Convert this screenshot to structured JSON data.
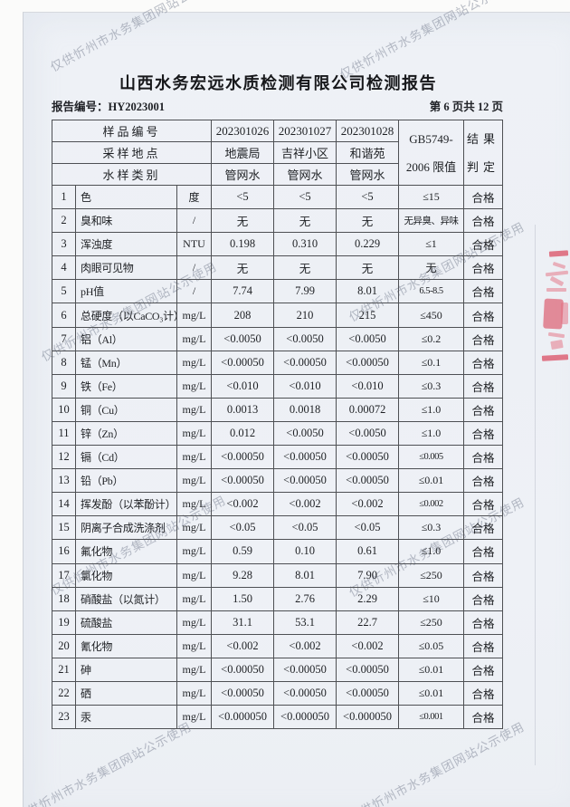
{
  "title": "山西水务宏远水质检测有限公司检测报告",
  "meta": {
    "report_no": "报告编号：HY2023001",
    "page_info": "第 6 页共 12 页"
  },
  "watermark_text": "仅供忻州市水务集团网站公示使用",
  "table": {
    "header": {
      "sample_no_label": "样品编号",
      "location_label": "采样地点",
      "type_label": "水样类别",
      "sample_nos": [
        "202301026",
        "202301027",
        "202301028"
      ],
      "locations": [
        "地震局",
        "吉祥小区",
        "和谐苑"
      ],
      "types": [
        "管网水",
        "管网水",
        "管网水"
      ],
      "limit_col_line1": "GB5749-",
      "limit_col_line2": "2006 限值",
      "result_col_line1": "结果",
      "result_col_line2": "判定"
    },
    "rows": [
      {
        "no": "1",
        "name": "色",
        "unit": "度",
        "v1": "<5",
        "v2": "<5",
        "v3": "<5",
        "limit": "≤15",
        "result": "合格"
      },
      {
        "no": "2",
        "name": "臭和味",
        "unit": "/",
        "v1": "无",
        "v2": "无",
        "v3": "无",
        "limit": "无异臭、异味",
        "result": "合格"
      },
      {
        "no": "3",
        "name": "浑浊度",
        "unit": "NTU",
        "v1": "0.198",
        "v2": "0.310",
        "v3": "0.229",
        "limit": "≤1",
        "result": "合格"
      },
      {
        "no": "4",
        "name": "肉眼可见物",
        "unit": "/",
        "v1": "无",
        "v2": "无",
        "v3": "无",
        "limit": "无",
        "result": "合格"
      },
      {
        "no": "5",
        "name": "pH值",
        "unit": "/",
        "v1": "7.74",
        "v2": "7.99",
        "v3": "8.01",
        "limit": "6.5-8.5",
        "result": "合格"
      },
      {
        "no": "6",
        "name": "总硬度（以CaCO₃计）",
        "unit": "mg/L",
        "v1": "208",
        "v2": "210",
        "v3": "215",
        "limit": "≤450",
        "result": "合格"
      },
      {
        "no": "7",
        "name": "铝（Al）",
        "unit": "mg/L",
        "v1": "<0.0050",
        "v2": "<0.0050",
        "v3": "<0.0050",
        "limit": "≤0.2",
        "result": "合格"
      },
      {
        "no": "8",
        "name": "锰（Mn）",
        "unit": "mg/L",
        "v1": "<0.00050",
        "v2": "<0.00050",
        "v3": "<0.00050",
        "limit": "≤0.1",
        "result": "合格"
      },
      {
        "no": "9",
        "name": "铁（Fe）",
        "unit": "mg/L",
        "v1": "<0.010",
        "v2": "<0.010",
        "v3": "<0.010",
        "limit": "≤0.3",
        "result": "合格"
      },
      {
        "no": "10",
        "name": "铜（Cu）",
        "unit": "mg/L",
        "v1": "0.0013",
        "v2": "0.0018",
        "v3": "0.00072",
        "limit": "≤1.0",
        "result": "合格"
      },
      {
        "no": "11",
        "name": "锌（Zn）",
        "unit": "mg/L",
        "v1": "0.012",
        "v2": "<0.0050",
        "v3": "<0.0050",
        "limit": "≤1.0",
        "result": "合格"
      },
      {
        "no": "12",
        "name": "镉（Cd）",
        "unit": "mg/L",
        "v1": "<0.00050",
        "v2": "<0.00050",
        "v3": "<0.00050",
        "limit": "≤0.005",
        "result": "合格"
      },
      {
        "no": "13",
        "name": "铅（Pb）",
        "unit": "mg/L",
        "v1": "<0.00050",
        "v2": "<0.00050",
        "v3": "<0.00050",
        "limit": "≤0.01",
        "result": "合格"
      },
      {
        "no": "14",
        "name": "挥发酚（以苯酚计）",
        "unit": "mg/L",
        "v1": "<0.002",
        "v2": "<0.002",
        "v3": "<0.002",
        "limit": "≤0.002",
        "result": "合格"
      },
      {
        "no": "15",
        "name": "阴离子合成洗涤剂",
        "unit": "mg/L",
        "v1": "<0.05",
        "v2": "<0.05",
        "v3": "<0.05",
        "limit": "≤0.3",
        "result": "合格"
      },
      {
        "no": "16",
        "name": "氟化物",
        "unit": "mg/L",
        "v1": "0.59",
        "v2": "0.10",
        "v3": "0.61",
        "limit": "≤1.0",
        "result": "合格"
      },
      {
        "no": "17",
        "name": "氯化物",
        "unit": "mg/L",
        "v1": "9.28",
        "v2": "8.01",
        "v3": "7.90",
        "limit": "≤250",
        "result": "合格"
      },
      {
        "no": "18",
        "name": "硝酸盐（以氮计）",
        "unit": "mg/L",
        "v1": "1.50",
        "v2": "2.76",
        "v3": "2.29",
        "limit": "≤10",
        "result": "合格"
      },
      {
        "no": "19",
        "name": "硫酸盐",
        "unit": "mg/L",
        "v1": "31.1",
        "v2": "53.1",
        "v3": "22.7",
        "limit": "≤250",
        "result": "合格"
      },
      {
        "no": "20",
        "name": "氰化物",
        "unit": "mg/L",
        "v1": "<0.002",
        "v2": "<0.002",
        "v3": "<0.002",
        "limit": "≤0.05",
        "result": "合格"
      },
      {
        "no": "21",
        "name": "砷",
        "unit": "mg/L",
        "v1": "<0.00050",
        "v2": "<0.00050",
        "v3": "<0.00050",
        "limit": "≤0.01",
        "result": "合格"
      },
      {
        "no": "22",
        "name": "硒",
        "unit": "mg/L",
        "v1": "<0.00050",
        "v2": "<0.00050",
        "v3": "<0.00050",
        "limit": "≤0.01",
        "result": "合格"
      },
      {
        "no": "23",
        "name": "汞",
        "unit": "mg/L",
        "v1": "<0.000050",
        "v2": "<0.000050",
        "v3": "<0.000050",
        "limit": "≤0.001",
        "result": "合格"
      }
    ]
  },
  "colors": {
    "paper": "#eef1f6",
    "border": "#4e5054",
    "watermark": "#7a8394",
    "stamp_red": "#d83e54"
  }
}
